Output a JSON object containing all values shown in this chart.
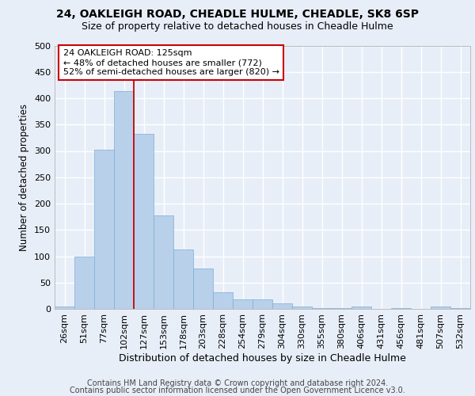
{
  "title1": "24, OAKLEIGH ROAD, CHEADLE HULME, CHEADLE, SK8 6SP",
  "title2": "Size of property relative to detached houses in Cheadle Hulme",
  "xlabel": "Distribution of detached houses by size in Cheadle Hulme",
  "ylabel": "Number of detached properties",
  "bar_labels": [
    "26sqm",
    "51sqm",
    "77sqm",
    "102sqm",
    "127sqm",
    "153sqm",
    "178sqm",
    "203sqm",
    "228sqm",
    "254sqm",
    "279sqm",
    "304sqm",
    "330sqm",
    "355sqm",
    "380sqm",
    "406sqm",
    "431sqm",
    "456sqm",
    "481sqm",
    "507sqm",
    "532sqm"
  ],
  "bar_values": [
    4,
    99,
    302,
    413,
    333,
    178,
    113,
    76,
    31,
    18,
    18,
    10,
    5,
    2,
    1,
    5,
    0,
    1,
    0,
    4,
    1
  ],
  "bar_color": "#b8d0ea",
  "bar_edgecolor": "#7aafd4",
  "vline_index": 3.5,
  "vline_color": "#cc0000",
  "annotation_text": "24 OAKLEIGH ROAD: 125sqm\n← 48% of detached houses are smaller (772)\n52% of semi-detached houses are larger (820) →",
  "annotation_box_facecolor": "#ffffff",
  "annotation_box_edgecolor": "#cc0000",
  "background_color": "#e8eef8",
  "plot_background": "#e8eef8",
  "grid_color": "#ffffff",
  "footer_line1": "Contains HM Land Registry data © Crown copyright and database right 2024.",
  "footer_line2": "Contains public sector information licensed under the Open Government Licence v3.0.",
  "ylim": [
    0,
    500
  ],
  "yticks": [
    0,
    50,
    100,
    150,
    200,
    250,
    300,
    350,
    400,
    450,
    500
  ],
  "title1_fontsize": 10,
  "title2_fontsize": 9,
  "xlabel_fontsize": 9,
  "ylabel_fontsize": 8.5,
  "tick_fontsize": 8,
  "annotation_fontsize": 8,
  "footer_fontsize": 7
}
